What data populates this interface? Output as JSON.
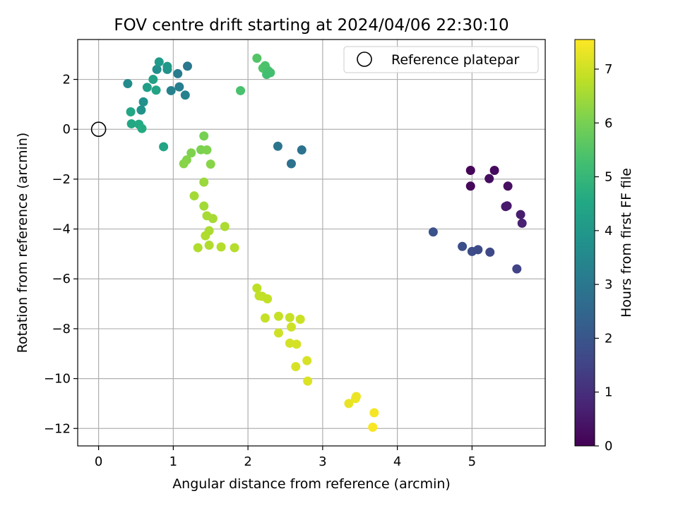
{
  "chart_data": {
    "type": "scatter",
    "title": "FOV centre drift starting at 2024/04/06 22:30:10",
    "xlabel": "Angular distance from reference (arcmin)",
    "ylabel": "Rotation from reference (arcmin)",
    "xlim": [
      -0.28,
      5.98
    ],
    "ylim": [
      -12.7,
      3.6
    ],
    "xticks": [
      0,
      1,
      2,
      3,
      4,
      5
    ],
    "yticks": [
      -12,
      -10,
      -8,
      -6,
      -4,
      -2,
      0,
      2
    ],
    "grid": true,
    "legend": {
      "position": "top-right",
      "entries": [
        "Reference platepar"
      ]
    },
    "reference_point": {
      "x": 0,
      "y": 0
    },
    "colorbar": {
      "label": "Hours from first FF file",
      "min": 0,
      "max": 7.55,
      "ticks": [
        0,
        1,
        2,
        3,
        4,
        5,
        6,
        7
      ],
      "colormap": "viridis"
    },
    "points": [
      {
        "x": 4.98,
        "y": -1.65,
        "c": 0.1
      },
      {
        "x": 4.98,
        "y": -2.28,
        "c": 0.15
      },
      {
        "x": 5.3,
        "y": -1.65,
        "c": 0.2
      },
      {
        "x": 5.23,
        "y": -1.98,
        "c": 0.25
      },
      {
        "x": 5.48,
        "y": -2.28,
        "c": 0.3
      },
      {
        "x": 5.47,
        "y": -3.07,
        "c": 0.5
      },
      {
        "x": 5.45,
        "y": -3.1,
        "c": 0.55
      },
      {
        "x": 5.65,
        "y": -3.42,
        "c": 0.6
      },
      {
        "x": 5.67,
        "y": -3.77,
        "c": 0.7
      },
      {
        "x": 4.48,
        "y": -4.12,
        "c": 1.9
      },
      {
        "x": 4.87,
        "y": -4.7,
        "c": 1.8
      },
      {
        "x": 5.0,
        "y": -4.9,
        "c": 1.75
      },
      {
        "x": 5.08,
        "y": -4.83,
        "c": 1.7
      },
      {
        "x": 5.24,
        "y": -4.93,
        "c": 1.65
      },
      {
        "x": 5.6,
        "y": -5.6,
        "c": 1.5
      },
      {
        "x": 2.4,
        "y": -0.68,
        "c": 2.9
      },
      {
        "x": 2.72,
        "y": -0.83,
        "c": 2.85
      },
      {
        "x": 2.58,
        "y": -1.38,
        "c": 2.8
      },
      {
        "x": 1.19,
        "y": 2.53,
        "c": 3.0
      },
      {
        "x": 1.06,
        "y": 2.23,
        "c": 3.1
      },
      {
        "x": 1.08,
        "y": 1.7,
        "c": 3.2
      },
      {
        "x": 1.16,
        "y": 1.37,
        "c": 3.25
      },
      {
        "x": 0.97,
        "y": 1.55,
        "c": 3.3
      },
      {
        "x": 0.39,
        "y": 1.83,
        "c": 3.6
      },
      {
        "x": 0.78,
        "y": 2.4,
        "c": 3.7
      },
      {
        "x": 0.92,
        "y": 2.4,
        "c": 3.75
      },
      {
        "x": 0.92,
        "y": 2.52,
        "c": 4.0
      },
      {
        "x": 0.81,
        "y": 2.7,
        "c": 4.1
      },
      {
        "x": 0.6,
        "y": 1.1,
        "c": 3.8
      },
      {
        "x": 0.57,
        "y": 0.77,
        "c": 3.85
      },
      {
        "x": 0.65,
        "y": 1.68,
        "c": 4.2
      },
      {
        "x": 0.73,
        "y": 2.0,
        "c": 4.3
      },
      {
        "x": 0.77,
        "y": 1.57,
        "c": 4.4
      },
      {
        "x": 0.43,
        "y": 0.7,
        "c": 4.45
      },
      {
        "x": 0.44,
        "y": 0.22,
        "c": 4.5
      },
      {
        "x": 0.54,
        "y": 0.2,
        "c": 4.55
      },
      {
        "x": 0.58,
        "y": 0.03,
        "c": 4.6
      },
      {
        "x": 0.87,
        "y": -0.7,
        "c": 4.4
      },
      {
        "x": 2.12,
        "y": 2.85,
        "c": 5.5
      },
      {
        "x": 2.2,
        "y": 2.45,
        "c": 5.45
      },
      {
        "x": 2.23,
        "y": 2.55,
        "c": 5.4
      },
      {
        "x": 2.27,
        "y": 2.35,
        "c": 5.35
      },
      {
        "x": 2.3,
        "y": 2.27,
        "c": 5.3
      },
      {
        "x": 2.25,
        "y": 2.2,
        "c": 5.25
      },
      {
        "x": 1.9,
        "y": 1.55,
        "c": 5.35
      },
      {
        "x": 1.41,
        "y": -0.27,
        "c": 6.0
      },
      {
        "x": 1.37,
        "y": -0.82,
        "c": 6.05
      },
      {
        "x": 1.45,
        "y": -0.83,
        "c": 6.1
      },
      {
        "x": 1.24,
        "y": -0.95,
        "c": 6.1
      },
      {
        "x": 1.18,
        "y": -1.23,
        "c": 6.15
      },
      {
        "x": 1.14,
        "y": -1.38,
        "c": 6.2
      },
      {
        "x": 1.5,
        "y": -1.4,
        "c": 6.2
      },
      {
        "x": 1.41,
        "y": -2.12,
        "c": 6.4
      },
      {
        "x": 1.28,
        "y": -2.67,
        "c": 6.5
      },
      {
        "x": 1.41,
        "y": -3.08,
        "c": 6.5
      },
      {
        "x": 1.45,
        "y": -3.47,
        "c": 6.55
      },
      {
        "x": 1.53,
        "y": -3.58,
        "c": 6.55
      },
      {
        "x": 1.69,
        "y": -3.9,
        "c": 6.6
      },
      {
        "x": 1.48,
        "y": -4.07,
        "c": 6.6
      },
      {
        "x": 1.43,
        "y": -4.27,
        "c": 6.65
      },
      {
        "x": 1.33,
        "y": -4.75,
        "c": 6.65
      },
      {
        "x": 1.48,
        "y": -4.65,
        "c": 6.65
      },
      {
        "x": 1.64,
        "y": -4.72,
        "c": 6.7
      },
      {
        "x": 1.82,
        "y": -4.75,
        "c": 6.7
      },
      {
        "x": 2.12,
        "y": -6.37,
        "c": 6.8
      },
      {
        "x": 2.15,
        "y": -6.68,
        "c": 6.85
      },
      {
        "x": 2.19,
        "y": -6.7,
        "c": 6.85
      },
      {
        "x": 2.26,
        "y": -6.8,
        "c": 6.85
      },
      {
        "x": 2.23,
        "y": -7.57,
        "c": 6.9
      },
      {
        "x": 2.41,
        "y": -7.5,
        "c": 6.9
      },
      {
        "x": 2.56,
        "y": -7.55,
        "c": 6.9
      },
      {
        "x": 2.7,
        "y": -7.62,
        "c": 6.95
      },
      {
        "x": 2.58,
        "y": -7.93,
        "c": 7.0
      },
      {
        "x": 2.41,
        "y": -8.17,
        "c": 7.0
      },
      {
        "x": 2.56,
        "y": -8.58,
        "c": 7.05
      },
      {
        "x": 2.65,
        "y": -8.62,
        "c": 7.05
      },
      {
        "x": 2.64,
        "y": -9.52,
        "c": 7.1
      },
      {
        "x": 2.79,
        "y": -9.28,
        "c": 7.1
      },
      {
        "x": 2.8,
        "y": -10.1,
        "c": 7.15
      },
      {
        "x": 3.35,
        "y": -11.0,
        "c": 7.3
      },
      {
        "x": 3.44,
        "y": -10.8,
        "c": 7.35
      },
      {
        "x": 3.45,
        "y": -10.72,
        "c": 7.35
      },
      {
        "x": 3.69,
        "y": -11.37,
        "c": 7.45
      },
      {
        "x": 3.67,
        "y": -11.95,
        "c": 7.5
      }
    ]
  }
}
